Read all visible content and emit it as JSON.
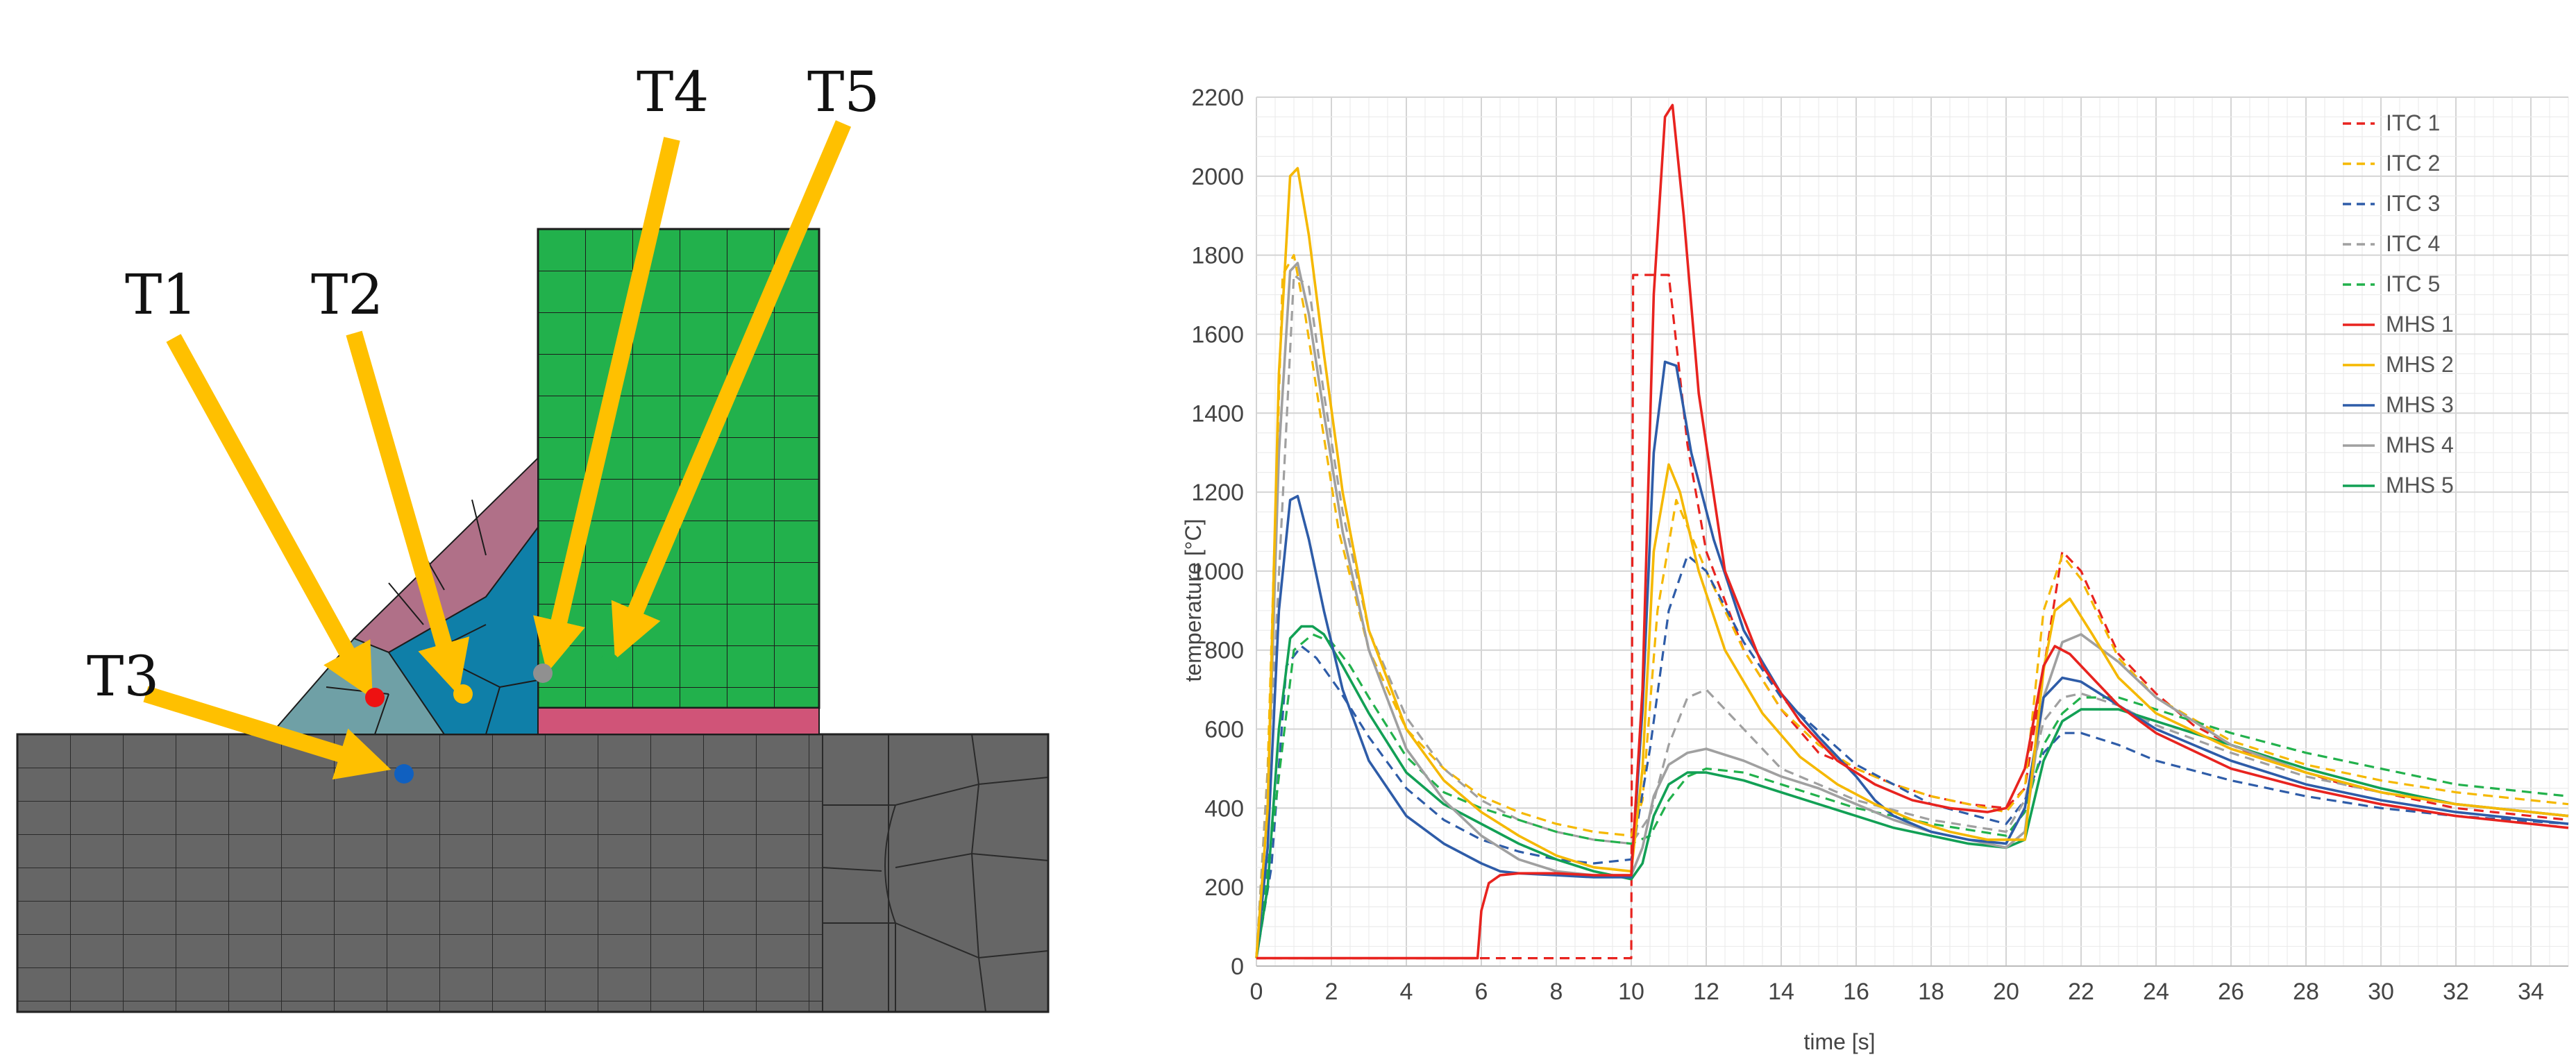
{
  "mesh": {
    "labels": [
      "T1",
      "T2",
      "T3",
      "T4",
      "T5"
    ],
    "colors": {
      "base_plate": "#666666",
      "vertical_plate": "#22b14c",
      "weld_upper": "#b07088",
      "weld_lower_left": "#6fa0a6",
      "weld_lower_right": "#0f7fa8",
      "interface_strip": "#d05478",
      "arrow": "#ffc000",
      "point_t1": "#ee1111",
      "point_t2": "#ffc000",
      "point_t3": "#1060c0",
      "point_t4": "#909090",
      "point_t5": "#22b14c"
    }
  },
  "chart_data": {
    "type": "line",
    "title": "",
    "xlabel": "time [s]",
    "ylabel": "temperature [°C]",
    "xlim": [
      0,
      35
    ],
    "ylim": [
      0,
      2200
    ],
    "xticks": [
      "0",
      "2",
      "4",
      "6",
      "8",
      "10",
      "12",
      "14",
      "16",
      "18",
      "20",
      "22",
      "24",
      "26",
      "28",
      "30",
      "32",
      "34"
    ],
    "yticks": [
      "0",
      "200",
      "400",
      "600",
      "800",
      "1000",
      "1200",
      "1400",
      "1600",
      "1800",
      "2000",
      "2200"
    ],
    "grid": true,
    "legend_position": "top-right",
    "series": [
      {
        "name": "ITC 1",
        "color": "#e8231f",
        "dash": true,
        "x": [
          0,
          6,
          10,
          10.05,
          11,
          11.5,
          12,
          13,
          14,
          15,
          16,
          17,
          18,
          19,
          20,
          20.5,
          21.5,
          22,
          23,
          24,
          25,
          26,
          27,
          28,
          29,
          30,
          31,
          32,
          33,
          34,
          35
        ],
        "y": [
          20,
          20,
          20,
          1750,
          1750,
          1320,
          1050,
          800,
          650,
          540,
          500,
          460,
          430,
          410,
          400,
          450,
          1050,
          1000,
          790,
          690,
          610,
          560,
          520,
          490,
          460,
          440,
          420,
          400,
          390,
          380,
          370
        ]
      },
      {
        "name": "ITC 2",
        "color": "#f5b800",
        "dash": true,
        "x": [
          0,
          0.3,
          0.7,
          1.0,
          1.3,
          1.7,
          2.2,
          3,
          4,
          5,
          6,
          7,
          8,
          9,
          10,
          10.3,
          10.7,
          11.2,
          12,
          13,
          14,
          15,
          16,
          17,
          18,
          19,
          20,
          20.5,
          21,
          21.5,
          22,
          23,
          24,
          26,
          28,
          30,
          32,
          35
        ],
        "y": [
          20,
          500,
          1750,
          1800,
          1650,
          1400,
          1100,
          800,
          600,
          500,
          430,
          390,
          360,
          340,
          330,
          420,
          900,
          1180,
          1000,
          800,
          650,
          560,
          500,
          460,
          430,
          410,
          390,
          450,
          900,
          1040,
          980,
          780,
          680,
          570,
          510,
          470,
          440,
          410
        ]
      },
      {
        "name": "ITC 3",
        "color": "#2e5ca8",
        "dash": true,
        "x": [
          0,
          0.4,
          0.8,
          1.2,
          1.6,
          2.2,
          3,
          4,
          5,
          6,
          7,
          8,
          9,
          10,
          10.5,
          11,
          11.5,
          12,
          13,
          14,
          16,
          18,
          20,
          20.5,
          21,
          21.5,
          22,
          23,
          24,
          26,
          28,
          30,
          32,
          35
        ],
        "y": [
          20,
          250,
          760,
          810,
          780,
          700,
          580,
          450,
          370,
          320,
          290,
          270,
          260,
          270,
          550,
          900,
          1040,
          1000,
          820,
          680,
          510,
          410,
          360,
          420,
          540,
          590,
          590,
          560,
          520,
          470,
          430,
          400,
          380,
          360
        ]
      },
      {
        "name": "ITC 4",
        "color": "#a0a0a0",
        "dash": true,
        "x": [
          0,
          0.5,
          1.0,
          1.4,
          1.8,
          2.3,
          3,
          4,
          5,
          6,
          7,
          8,
          9,
          10,
          10.5,
          11,
          11.5,
          12,
          13,
          14,
          16,
          18,
          20,
          20.5,
          21,
          21.5,
          22,
          23,
          24,
          26,
          28,
          30,
          32,
          35
        ],
        "y": [
          20,
          800,
          1750,
          1720,
          1450,
          1150,
          850,
          630,
          500,
          420,
          370,
          340,
          320,
          310,
          380,
          560,
          680,
          700,
          600,
          500,
          420,
          370,
          340,
          420,
          620,
          680,
          690,
          660,
          610,
          540,
          480,
          440,
          410,
          380
        ]
      },
      {
        "name": "ITC 5",
        "color": "#22b14c",
        "dash": true,
        "x": [
          0,
          0.5,
          1.0,
          1.5,
          2.0,
          2.5,
          3,
          4,
          5,
          6,
          7,
          8,
          9,
          10,
          10.5,
          11,
          11.5,
          12,
          13,
          14,
          16,
          18,
          20,
          20.5,
          21,
          21.5,
          22,
          23,
          24,
          26,
          28,
          30,
          32,
          35
        ],
        "y": [
          20,
          400,
          800,
          840,
          820,
          760,
          680,
          530,
          440,
          400,
          370,
          340,
          320,
          310,
          330,
          420,
          480,
          500,
          490,
          460,
          400,
          360,
          330,
          390,
          560,
          640,
          680,
          680,
          650,
          590,
          540,
          500,
          460,
          430
        ]
      },
      {
        "name": "MHS 1",
        "color": "#e8231f",
        "dash": false,
        "x": [
          0,
          5.9,
          6.0,
          6.2,
          6.5,
          7,
          8,
          9,
          10,
          10.3,
          10.6,
          10.9,
          11.1,
          11.4,
          11.8,
          12.5,
          13.5,
          14.5,
          15.5,
          16.5,
          17.5,
          18.5,
          19.5,
          20,
          20.5,
          21,
          21.3,
          21.7,
          22.2,
          23,
          24,
          26,
          28,
          30,
          32,
          35
        ],
        "y": [
          20,
          20,
          140,
          210,
          230,
          235,
          235,
          230,
          230,
          700,
          1700,
          2150,
          2180,
          1900,
          1450,
          1000,
          760,
          620,
          520,
          460,
          420,
          400,
          390,
          400,
          500,
          760,
          810,
          790,
          740,
          660,
          590,
          500,
          450,
          410,
          380,
          350
        ]
      },
      {
        "name": "MHS 2",
        "color": "#f5b800",
        "dash": false,
        "x": [
          0,
          0.3,
          0.6,
          0.9,
          1.1,
          1.4,
          1.8,
          2.3,
          3,
          4,
          5,
          6,
          7,
          8,
          9,
          10,
          10.3,
          10.6,
          11,
          11.3,
          11.8,
          12.5,
          13.5,
          14.5,
          15.5,
          16.5,
          17.5,
          18.5,
          19.5,
          20.5,
          21,
          21.3,
          21.7,
          22.3,
          23,
          24,
          26,
          28,
          30,
          32,
          35
        ],
        "y": [
          20,
          400,
          1500,
          2000,
          2020,
          1850,
          1550,
          1200,
          850,
          600,
          470,
          390,
          330,
          280,
          250,
          240,
          500,
          1050,
          1270,
          1200,
          1000,
          800,
          640,
          530,
          460,
          410,
          370,
          340,
          320,
          320,
          750,
          900,
          930,
          840,
          730,
          640,
          550,
          490,
          440,
          410,
          380
        ]
      },
      {
        "name": "MHS 3",
        "color": "#2e5ca8",
        "dash": false,
        "x": [
          0,
          0.3,
          0.6,
          0.9,
          1.1,
          1.4,
          1.8,
          2.3,
          3,
          4,
          5,
          6,
          6.5,
          7,
          8,
          9,
          10,
          10.3,
          10.6,
          10.9,
          11.2,
          11.6,
          12.2,
          13,
          14,
          15,
          16,
          16.5,
          17,
          18,
          19,
          20,
          20.5,
          21,
          21.5,
          22,
          23,
          24,
          26,
          28,
          30,
          32,
          35
        ],
        "y": [
          20,
          300,
          900,
          1180,
          1190,
          1080,
          900,
          700,
          520,
          380,
          310,
          260,
          240,
          235,
          230,
          225,
          225,
          650,
          1300,
          1530,
          1520,
          1300,
          1080,
          850,
          690,
          580,
          480,
          420,
          380,
          340,
          320,
          310,
          400,
          680,
          730,
          720,
          660,
          600,
          520,
          460,
          420,
          390,
          360
        ]
      },
      {
        "name": "MHS 4",
        "color": "#a0a0a0",
        "dash": false,
        "x": [
          0,
          0.3,
          0.6,
          0.9,
          1.1,
          1.4,
          1.8,
          2.3,
          3,
          4,
          5,
          6,
          7,
          8,
          9,
          10,
          10.3,
          10.6,
          11,
          11.5,
          12,
          13,
          14,
          15,
          16,
          17,
          18,
          19,
          20,
          20.5,
          21,
          21.5,
          22,
          23,
          24,
          26,
          28,
          30,
          32,
          35
        ],
        "y": [
          20,
          400,
          1300,
          1760,
          1780,
          1650,
          1400,
          1100,
          800,
          550,
          420,
          330,
          270,
          240,
          230,
          230,
          300,
          430,
          510,
          540,
          550,
          520,
          480,
          450,
          410,
          370,
          340,
          320,
          300,
          340,
          680,
          820,
          840,
          770,
          680,
          560,
          490,
          440,
          410,
          380
        ]
      },
      {
        "name": "MHS 5",
        "color": "#12a055",
        "dash": false,
        "x": [
          0,
          0.3,
          0.6,
          0.9,
          1.2,
          1.5,
          1.8,
          2.3,
          3,
          4,
          5,
          6,
          7,
          8,
          9,
          10,
          10.3,
          10.6,
          11,
          11.5,
          12,
          13,
          14,
          15,
          16,
          17,
          18,
          19,
          20,
          20.5,
          21,
          21.5,
          22,
          23,
          24,
          26,
          28,
          30,
          32,
          35
        ],
        "y": [
          20,
          200,
          600,
          830,
          860,
          860,
          840,
          760,
          640,
          490,
          410,
          360,
          310,
          270,
          240,
          220,
          260,
          380,
          460,
          490,
          490,
          470,
          440,
          410,
          380,
          350,
          330,
          310,
          300,
          320,
          520,
          620,
          650,
          650,
          620,
          560,
          500,
          450,
          410,
          380
        ]
      }
    ]
  }
}
